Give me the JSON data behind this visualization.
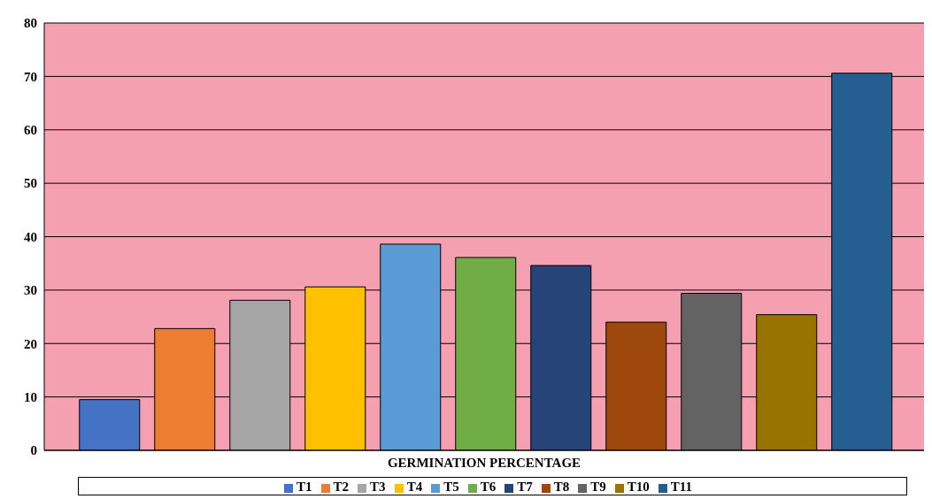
{
  "chart_data": {
    "type": "bar",
    "categories": [
      "GERMINATION PERCENTAGE"
    ],
    "series": [
      {
        "name": "T1",
        "color": "#4472c4",
        "values": [
          9.5
        ]
      },
      {
        "name": "T2",
        "color": "#ed7d31",
        "values": [
          22.8
        ]
      },
      {
        "name": "T3",
        "color": "#a5a5a5",
        "values": [
          28.1
        ]
      },
      {
        "name": "T4",
        "color": "#ffc000",
        "values": [
          30.6
        ]
      },
      {
        "name": "T5",
        "color": "#5b9bd5",
        "values": [
          38.6
        ]
      },
      {
        "name": "T6",
        "color": "#70ad47",
        "values": [
          36.1
        ]
      },
      {
        "name": "T7",
        "color": "#264478",
        "values": [
          34.6
        ]
      },
      {
        "name": "T8",
        "color": "#9e480e",
        "values": [
          24.0
        ]
      },
      {
        "name": "T9",
        "color": "#636363",
        "values": [
          29.4
        ]
      },
      {
        "name": "T10",
        "color": "#997300",
        "values": [
          25.4
        ]
      },
      {
        "name": "T11",
        "color": "#255e91",
        "values": [
          70.6
        ]
      }
    ],
    "ylim": [
      0,
      80
    ],
    "yticks": [
      0,
      10,
      20,
      30,
      40,
      50,
      60,
      70,
      80
    ],
    "grid": "y",
    "legend": "bottom"
  }
}
